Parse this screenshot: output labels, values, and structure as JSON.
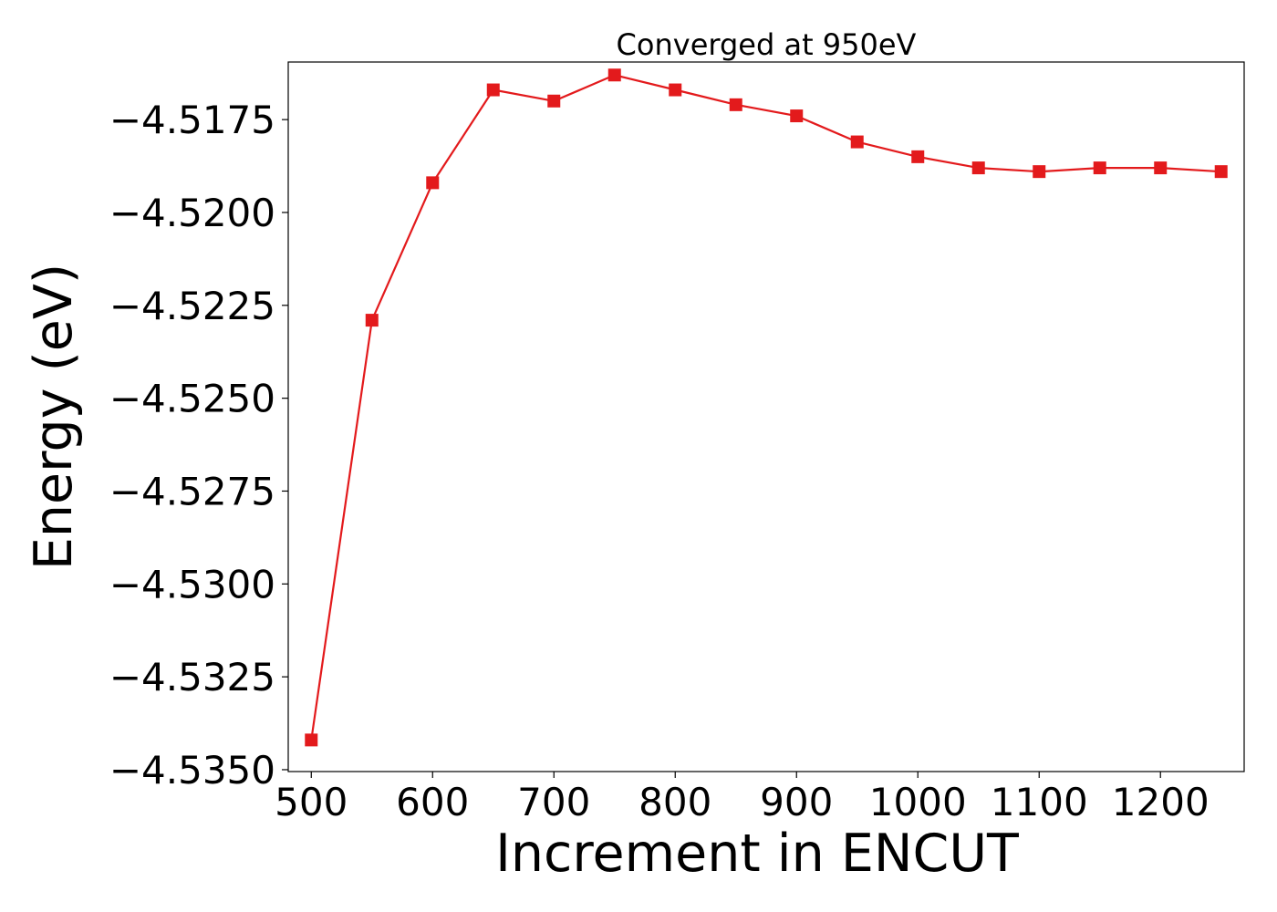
{
  "chart_data": {
    "type": "line",
    "title": "Converged at 950eV",
    "xlabel": "Increment in ENCUT",
    "ylabel": "Energy (eV)",
    "xlim": [
      481,
      1269
    ],
    "ylim": [
      -4.53505,
      -4.51595
    ],
    "x_ticks": [
      500,
      600,
      700,
      800,
      900,
      1000,
      1100,
      1200
    ],
    "x_tick_labels": [
      "500",
      "600",
      "700",
      "800",
      "900",
      "1000",
      "1100",
      "1200"
    ],
    "y_ticks": [
      -4.5175,
      -4.52,
      -4.5225,
      -4.525,
      -4.5275,
      -4.53,
      -4.5325,
      -4.535
    ],
    "y_tick_labels": [
      "−4.5175",
      "−4.5200",
      "−4.5225",
      "−4.5250",
      "−4.5275",
      "−4.5300",
      "−4.5325",
      "−4.5350"
    ],
    "grid": false,
    "series": [
      {
        "color": "#e31a1c",
        "marker": "square",
        "x": [
          500,
          550,
          600,
          650,
          700,
          750,
          800,
          850,
          900,
          950,
          1000,
          1050,
          1100,
          1150,
          1200,
          1250
        ],
        "y": [
          -4.5342,
          -4.5229,
          -4.5192,
          -4.5167,
          -4.517,
          -4.5163,
          -4.5167,
          -4.5171,
          -4.5174,
          -4.5181,
          -4.5185,
          -4.5188,
          -4.5189,
          -4.5188,
          -4.5188,
          -4.5189
        ]
      }
    ]
  }
}
